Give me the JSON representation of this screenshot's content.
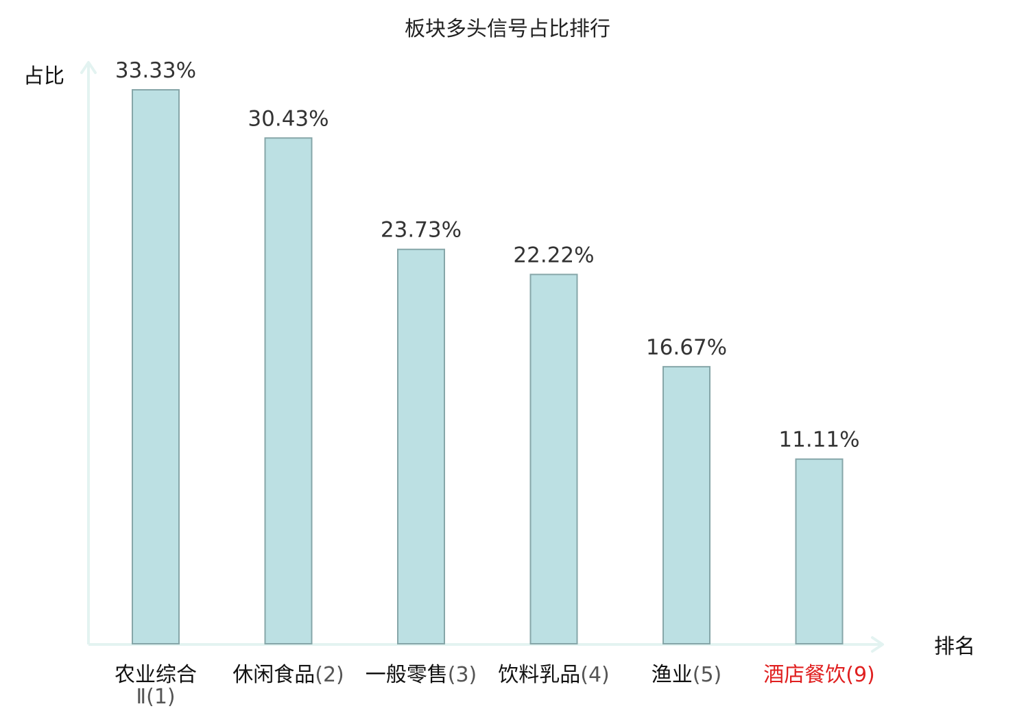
{
  "chart_data": {
    "type": "bar",
    "title": "板块多头信号占比排行",
    "ylabel": "占比",
    "xlabel": "排名",
    "ylim": [
      0,
      35
    ],
    "grid": false,
    "categories": [
      {
        "name": "农业综合",
        "name_line2": "Ⅱ",
        "rank": "(1)"
      },
      {
        "name": "休闲食品",
        "name_line2": "",
        "rank": "(2)"
      },
      {
        "name": "一般零售",
        "name_line2": "",
        "rank": "(3)"
      },
      {
        "name": "饮料乳品",
        "name_line2": "",
        "rank": "(4)"
      },
      {
        "name": "渔业",
        "name_line2": "",
        "rank": "(5)"
      },
      {
        "name": "酒店餐饮",
        "name_line2": "",
        "rank": "(9)",
        "highlight": true
      }
    ],
    "values": [
      33.33,
      30.43,
      23.73,
      22.22,
      16.67,
      11.11
    ],
    "value_labels": [
      "33.33%",
      "30.43%",
      "23.73%",
      "22.22%",
      "16.67%",
      "11.11%"
    ],
    "colors": {
      "bar_fill": "#bce0e3",
      "bar_stroke": "#86a6a8",
      "axis": "#e3f3f1",
      "highlight_label": "#e02020"
    }
  }
}
